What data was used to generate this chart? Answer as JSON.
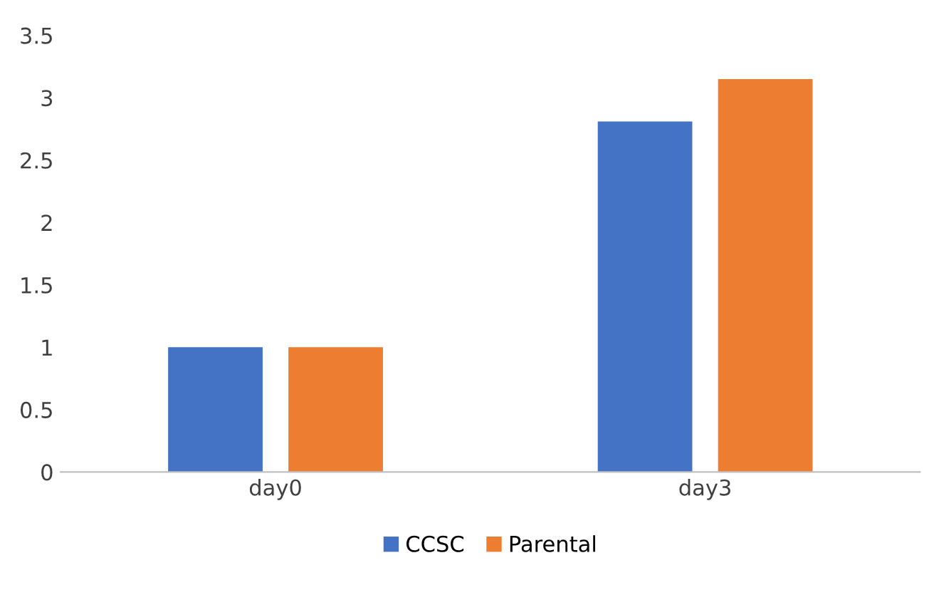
{
  "chart_data": {
    "type": "bar",
    "categories": [
      "day0",
      "day3"
    ],
    "series": [
      {
        "name": "CCSC",
        "color": "#4472c4",
        "values": [
          1,
          2.81
        ]
      },
      {
        "name": "Parental",
        "color": "#ed7d31",
        "values": [
          1,
          3.15
        ]
      }
    ],
    "ylim": [
      0,
      3.5
    ],
    "yticks": [
      0,
      0.5,
      1,
      1.5,
      2,
      2.5,
      3,
      3.5
    ],
    "grid": false,
    "legend": "bottom"
  }
}
